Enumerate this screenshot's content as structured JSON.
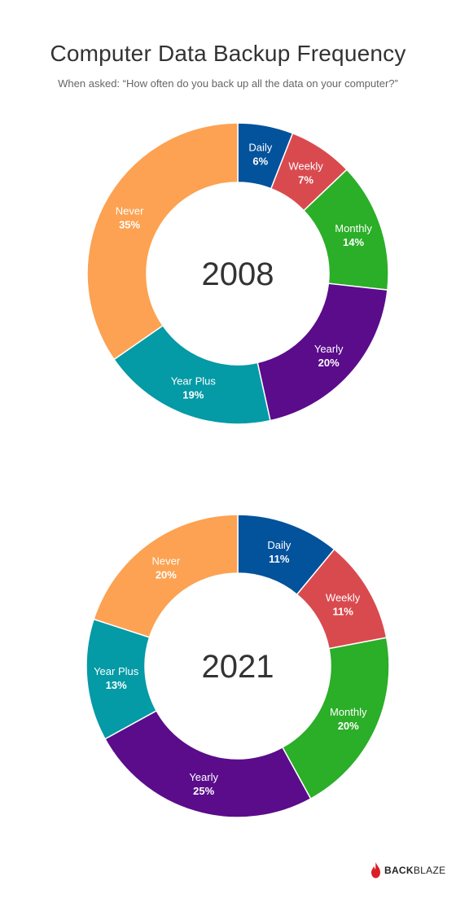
{
  "title": "Computer Data Backup Frequency",
  "subtitle": "When asked: “How often do you back up all the data on your computer?”",
  "chart_data": [
    {
      "type": "pie",
      "donut": true,
      "center_label": "2008",
      "categories": [
        "Daily",
        "Weekly",
        "Monthly",
        "Yearly",
        "Year Plus",
        "Never"
      ],
      "values": [
        6,
        7,
        14,
        20,
        19,
        35
      ],
      "value_labels": [
        "6%",
        "7%",
        "14%",
        "20%",
        "19%",
        "35%"
      ],
      "colors": [
        "#03529C",
        "#D94A4F",
        "#2BAE28",
        "#5A0C8B",
        "#049AA6",
        "#FCA252"
      ]
    },
    {
      "type": "pie",
      "donut": true,
      "center_label": "2021",
      "categories": [
        "Daily",
        "Weekly",
        "Monthly",
        "Yearly",
        "Year Plus",
        "Never"
      ],
      "values": [
        11,
        11,
        20,
        25,
        13,
        20
      ],
      "value_labels": [
        "11%",
        "11%",
        "20%",
        "25%",
        "13%",
        "20%"
      ],
      "colors": [
        "#03529C",
        "#D94A4F",
        "#2BAE28",
        "#5A0C8B",
        "#049AA6",
        "#FCA252"
      ]
    }
  ],
  "logo": {
    "text_bold": "BACK",
    "text_regular": "BLAZE",
    "flame_color": "#D92027"
  }
}
